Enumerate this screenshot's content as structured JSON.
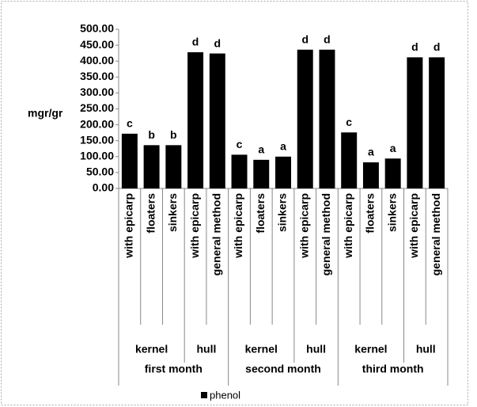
{
  "chart_data": {
    "type": "bar",
    "ylabel": "mgr/gr",
    "ylim": [
      0,
      500
    ],
    "yticks": [
      {
        "value": 0,
        "label": "0.00"
      },
      {
        "value": 50,
        "label": "50.00"
      },
      {
        "value": 100,
        "label": "100.00"
      },
      {
        "value": 150,
        "label": "150.00"
      },
      {
        "value": 200,
        "label": "200.00"
      },
      {
        "value": 250,
        "label": "250.00"
      },
      {
        "value": 300,
        "label": "300.00"
      },
      {
        "value": 350,
        "label": "350.00"
      },
      {
        "value": 400,
        "label": "400.00"
      },
      {
        "value": 450,
        "label": "450.00"
      },
      {
        "value": 500,
        "label": "500.00"
      }
    ],
    "groups": [
      {
        "name": "first month",
        "subgroups": [
          {
            "name": "kernel",
            "categories": [
              "with epicarp",
              "floaters",
              "sinkers"
            ]
          },
          {
            "name": "hull",
            "categories": [
              "with epicarp",
              "general method"
            ]
          }
        ]
      },
      {
        "name": "second month",
        "subgroups": [
          {
            "name": "kernel",
            "categories": [
              "with epicarp",
              "floaters",
              "sinkers"
            ]
          },
          {
            "name": "hull",
            "categories": [
              "with epicarp",
              "general method"
            ]
          }
        ]
      },
      {
        "name": "third month",
        "subgroups": [
          {
            "name": "kernel",
            "categories": [
              "with epicarp",
              "floaters",
              "sinkers"
            ]
          },
          {
            "name": "hull",
            "categories": [
              "with epicarp",
              "general method"
            ]
          }
        ]
      }
    ],
    "series": [
      {
        "name": "phenol",
        "color": "#000000",
        "values": [
          172,
          136,
          136,
          428,
          424,
          106,
          90,
          100,
          436,
          436,
          176,
          82,
          94,
          412,
          412
        ],
        "value_labels": [
          "c",
          "b",
          "b",
          "d",
          "d",
          "c",
          "a",
          "a",
          "d",
          "d",
          "c",
          "a",
          "a",
          "d",
          "d"
        ]
      }
    ],
    "legend": "bottom"
  }
}
